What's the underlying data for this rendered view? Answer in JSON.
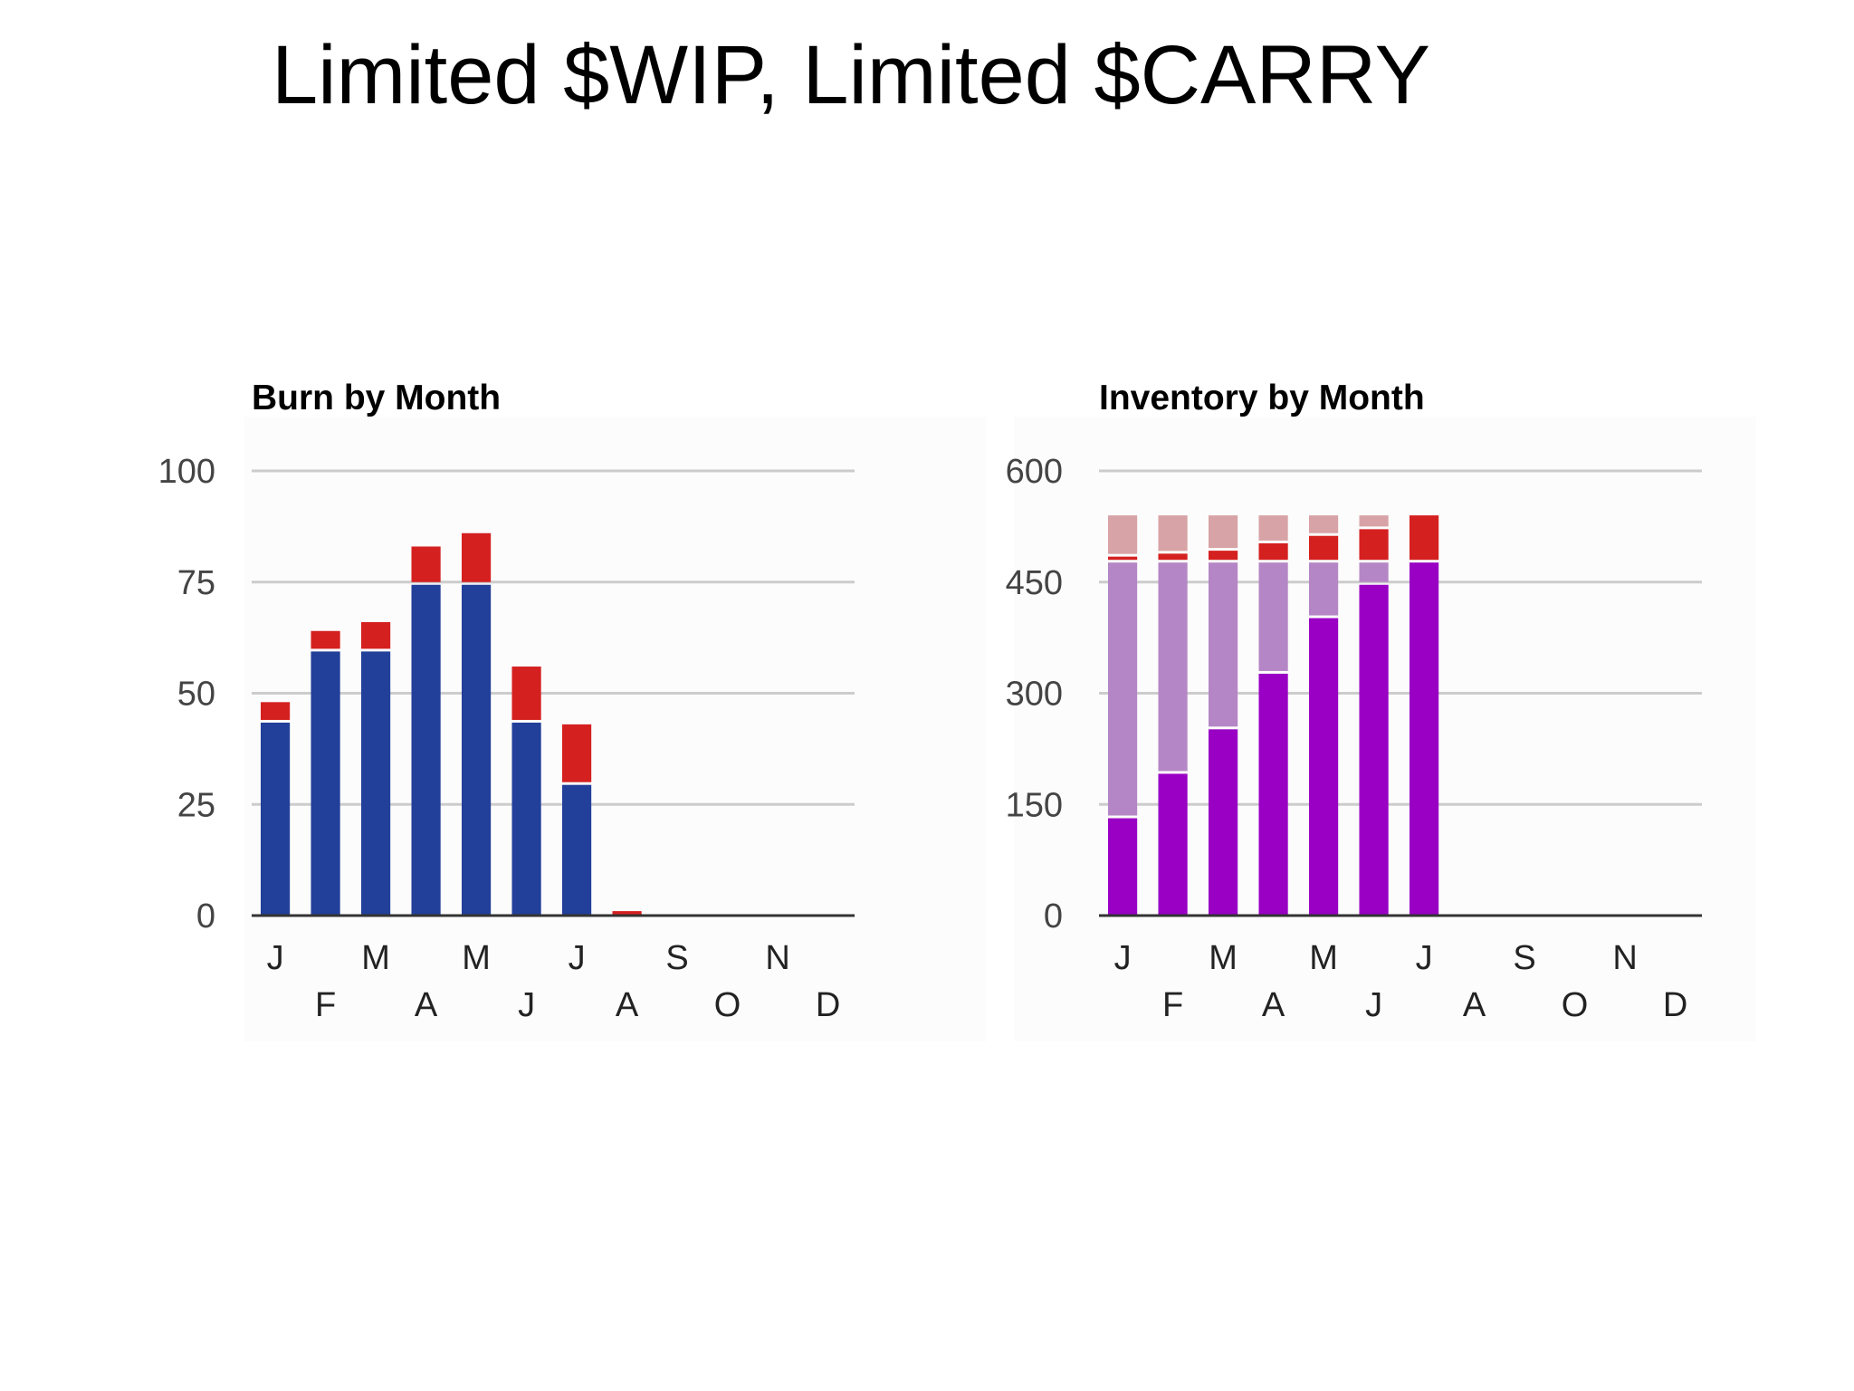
{
  "slide": {
    "title": "Limited $WIP, Limited $CARRY"
  },
  "chart_data": [
    {
      "id": "burn",
      "type": "bar",
      "stacked": true,
      "title": "Burn by Month",
      "xlabel": "",
      "ylabel": "",
      "ylim": [
        0,
        100
      ],
      "yticks": [
        0,
        25,
        50,
        75,
        100
      ],
      "grid": true,
      "legend": "none",
      "categories": [
        "J",
        "F",
        "M",
        "A",
        "M",
        "J",
        "J",
        "A",
        "S",
        "O",
        "N",
        "D"
      ],
      "series": [
        {
          "color": "#22409a",
          "values": [
            44,
            60,
            60,
            75,
            75,
            44,
            30,
            0,
            0,
            0,
            0,
            0
          ]
        },
        {
          "color": "#d52020",
          "values": [
            4,
            4,
            6,
            8,
            11,
            12,
            13,
            1,
            0,
            0,
            0,
            0
          ]
        }
      ]
    },
    {
      "id": "inventory",
      "type": "bar",
      "stacked": true,
      "title": "Inventory by Month",
      "xlabel": "",
      "ylabel": "",
      "ylim": [
        0,
        600
      ],
      "yticks": [
        0,
        150,
        300,
        450,
        600
      ],
      "grid": true,
      "legend": "none",
      "categories": [
        "J",
        "F",
        "M",
        "A",
        "M",
        "J",
        "J",
        "A",
        "S",
        "O",
        "N",
        "D"
      ],
      "series": [
        {
          "color": "#9900c4",
          "values": [
            135,
            195,
            255,
            330,
            405,
            450,
            480,
            0,
            0,
            0,
            0,
            0
          ]
        },
        {
          "color": "#b586c6",
          "values": [
            345,
            285,
            225,
            150,
            75,
            30,
            0,
            0,
            0,
            0,
            0,
            0
          ]
        },
        {
          "color": "#d52020",
          "values": [
            8,
            12,
            16,
            26,
            36,
            45,
            60,
            0,
            0,
            0,
            0,
            0
          ]
        },
        {
          "color": "#d8a3a6",
          "values": [
            52,
            48,
            44,
            34,
            24,
            15,
            0,
            0,
            0,
            0,
            0,
            0
          ]
        }
      ]
    }
  ]
}
